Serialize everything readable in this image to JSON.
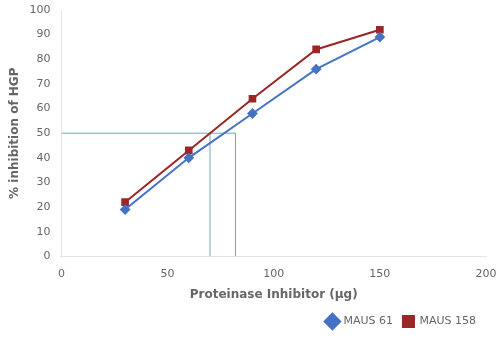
{
  "chart_data": {
    "type": "line",
    "xlabel": "Proteinase Inhibitor (μg)",
    "ylabel": "% inhibition of HGP",
    "xlim": [
      0,
      200
    ],
    "xticks": [
      0,
      50,
      100,
      150,
      200
    ],
    "ylim": [
      0,
      100
    ],
    "yticks": [
      0,
      10,
      20,
      30,
      40,
      50,
      60,
      70,
      80,
      90,
      100
    ],
    "grid": false,
    "legend": "lower right",
    "series": [
      {
        "name": "MAUS 61",
        "color": "#4472C4",
        "marker": "diamond",
        "line_style": "solid",
        "x": [
          30,
          60,
          90,
          120,
          150
        ],
        "values": [
          19,
          40,
          58,
          76,
          89
        ]
      },
      {
        "name": "MAUS 158",
        "color": "#9B2626",
        "marker": "square",
        "line_style": "solid",
        "x": [
          30,
          60,
          90,
          120,
          150
        ],
        "values": [
          22,
          43,
          64,
          84,
          92
        ]
      },
      {
        "color": "#6BAAB8",
        "line_style": "solid",
        "x": [
          0,
          82
        ],
        "values": [
          50,
          50
        ]
      },
      {
        "color": "#6BAAB8",
        "line_style": "solid",
        "x": [
          70,
          70
        ],
        "values": [
          0,
          50
        ]
      },
      {
        "color": "#6BAAB8",
        "line_style": "solid",
        "x": [
          82,
          82
        ],
        "values": [
          0,
          50
        ]
      }
    ]
  }
}
